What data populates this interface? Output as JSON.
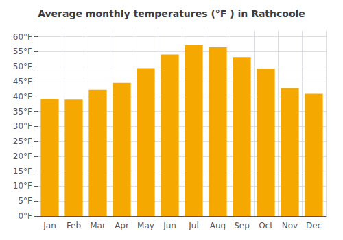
{
  "chart_data": {
    "type": "bar",
    "title": "Average monthly temperatures (°F ) in Rathcoole",
    "categories": [
      "Jan",
      "Feb",
      "Mar",
      "Apr",
      "May",
      "Jun",
      "Jul",
      "Aug",
      "Sep",
      "Oct",
      "Nov",
      "Dec"
    ],
    "values": [
      39.2,
      39.0,
      42.3,
      44.6,
      49.5,
      54.1,
      57.2,
      56.5,
      53.2,
      49.3,
      42.8,
      41.0
    ],
    "color": "#F5A800",
    "ylim": [
      0,
      62
    ],
    "yticks": [
      {
        "value": 0,
        "label": "0°F"
      },
      {
        "value": 5,
        "label": "5°F"
      },
      {
        "value": 10,
        "label": "10°F"
      },
      {
        "value": 15,
        "label": "15°F"
      },
      {
        "value": 20,
        "label": "20°F"
      },
      {
        "value": 25,
        "label": "25°F"
      },
      {
        "value": 30,
        "label": "30°F"
      },
      {
        "value": 35,
        "label": "35°F"
      },
      {
        "value": 40,
        "label": "40°F"
      },
      {
        "value": 45,
        "label": "45°F"
      },
      {
        "value": 50,
        "label": "50°F"
      },
      {
        "value": 55,
        "label": "55°F"
      },
      {
        "value": 60,
        "label": "60°F"
      }
    ],
    "grid": true
  }
}
